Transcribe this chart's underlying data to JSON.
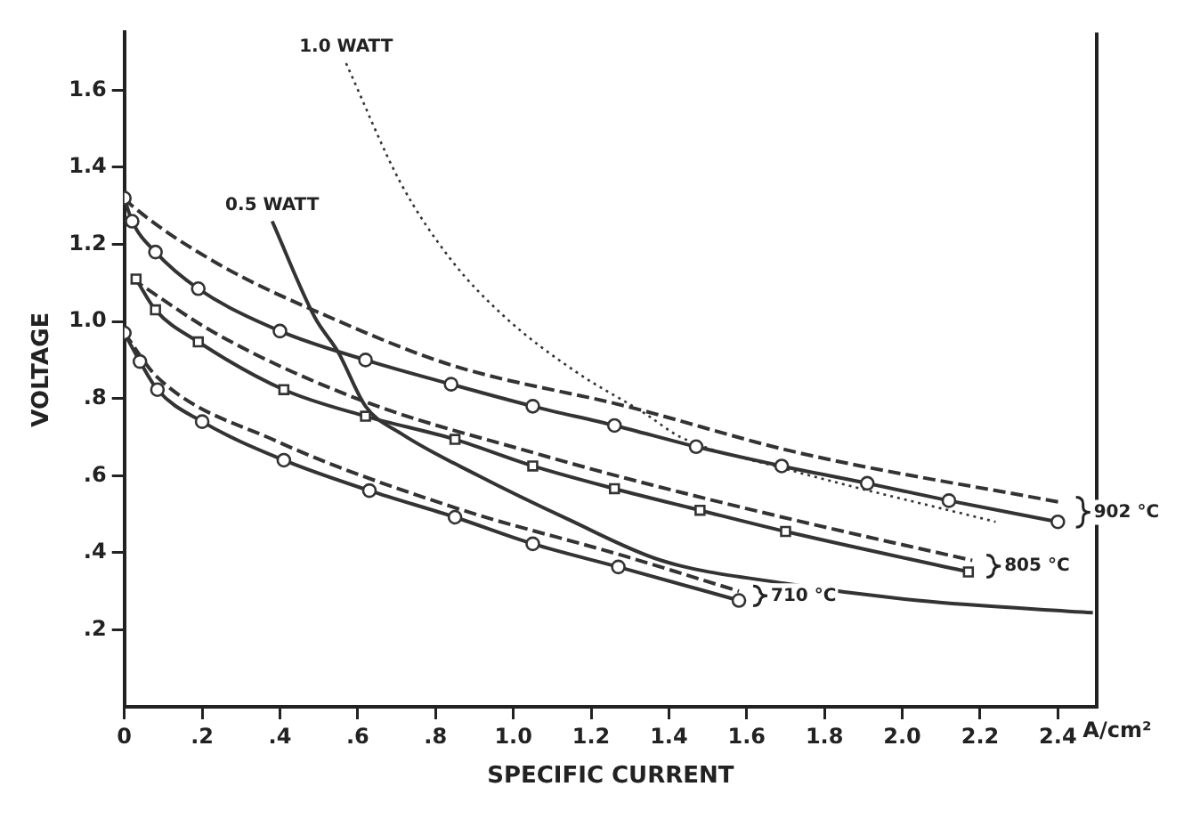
{
  "chart_data": {
    "type": "line",
    "xlabel": "SPECIFIC CURRENT",
    "ylabel": "VOLTAGE",
    "xlim": [
      0,
      2.5
    ],
    "ylim": [
      0,
      1.75
    ],
    "xticks": [
      0,
      {
        "value": 0.2,
        "label": ".2"
      },
      {
        "value": 0.4,
        "label": ".4"
      },
      {
        "value": 0.6,
        "label": ".6"
      },
      {
        "value": 0.8,
        "label": ".8"
      },
      {
        "value": 1.0,
        "label": "1.0"
      },
      {
        "value": 1.2,
        "label": "1.2"
      },
      {
        "value": 1.4,
        "label": "1.4"
      },
      {
        "value": 1.6,
        "label": "1.6"
      },
      {
        "value": 1.8,
        "label": "1.8"
      },
      {
        "value": 2.0,
        "label": "2.0"
      },
      {
        "value": 2.2,
        "label": "2.2"
      },
      {
        "value": 2.4,
        "label": "2.4"
      }
    ],
    "yticks": [
      {
        "value": 0.2,
        "label": ".2"
      },
      {
        "value": 0.4,
        "label": ".4"
      },
      {
        "value": 0.6,
        "label": ".6"
      },
      {
        "value": 0.8,
        "label": ".8"
      },
      {
        "value": 1.0,
        "label": "1.0"
      },
      {
        "value": 1.2,
        "label": "1.2"
      },
      {
        "value": 1.4,
        "label": "1.4"
      },
      {
        "value": 1.6,
        "label": "1.6"
      }
    ],
    "grid": false,
    "legend": false,
    "marker": "none",
    "line_style": "solid",
    "series": [
      {
        "name": "902 °C",
        "color": "#333333",
        "marker": "circle",
        "x": [
          0,
          0.02,
          0.08,
          0.19,
          0.4,
          0.62,
          0.84,
          1.05,
          1.26,
          1.47,
          1.69,
          1.91,
          2.12,
          2.4
        ],
        "values": [
          1.32,
          1.26,
          1.18,
          1.085,
          0.975,
          0.9,
          0.837,
          0.78,
          0.73,
          0.675,
          0.625,
          0.58,
          0.535,
          0.48
        ]
      },
      {
        "color": "#333333",
        "line_style": "dashed",
        "x": [
          0,
          0.02,
          0.24,
          0.53,
          0.84,
          1.29,
          1.73,
          2.41
        ],
        "values": [
          1.32,
          1.3,
          1.15,
          1.01,
          0.887,
          0.78,
          0.66,
          0.53
        ]
      },
      {
        "name": "805 °C",
        "color": "#333333",
        "marker": "square",
        "x": [
          0.03,
          0.08,
          0.19,
          0.41,
          0.62,
          0.85,
          1.05,
          1.26,
          1.48,
          1.7,
          2.17
        ],
        "values": [
          1.11,
          1.03,
          0.947,
          0.823,
          0.754,
          0.694,
          0.625,
          0.566,
          0.51,
          0.455,
          0.35
        ]
      },
      {
        "color": "#333333",
        "line_style": "dashed",
        "x": [
          0.02,
          0.24,
          0.61,
          1.06,
          1.29,
          1.73,
          2.18
        ],
        "values": [
          1.11,
          0.966,
          0.795,
          0.657,
          0.593,
          0.483,
          0.38
        ]
      },
      {
        "name": "710 °C",
        "color": "#333333",
        "marker": "circle",
        "x": [
          0,
          0.04,
          0.085,
          0.2,
          0.41,
          0.63,
          0.85,
          1.05,
          1.27,
          1.58
        ],
        "values": [
          0.97,
          0.896,
          0.823,
          0.74,
          0.64,
          0.561,
          0.492,
          0.423,
          0.363,
          0.276
        ]
      },
      {
        "color": "#333333",
        "line_style": "dashed",
        "x": [
          0,
          0.085,
          0.39,
          0.84,
          1.29,
          1.58
        ],
        "values": [
          0.97,
          0.855,
          0.69,
          0.52,
          0.39,
          0.3
        ]
      },
      {
        "name": "0.5 WATT",
        "color": "#333333",
        "x": [
          0.38,
          0.49,
          0.55,
          0.62,
          0.71,
          0.91,
          1.14,
          1.38,
          1.7,
          2.04,
          2.49
        ],
        "values": [
          1.26,
          1.01,
          0.92,
          0.78,
          0.71,
          0.6,
          0.487,
          0.38,
          0.32,
          0.276,
          0.244
        ]
      },
      {
        "name": "1.0 WATT",
        "color": "#333333",
        "line_style": "dotted",
        "x": [
          0.57,
          0.71,
          0.84,
          0.98,
          1.16,
          1.34,
          1.43,
          1.69,
          2.24
        ],
        "values": [
          1.67,
          1.36,
          1.16,
          1.01,
          0.87,
          0.76,
          0.7,
          0.62,
          0.48
        ]
      }
    ],
    "annotations": [
      "A/cm²"
    ]
  }
}
